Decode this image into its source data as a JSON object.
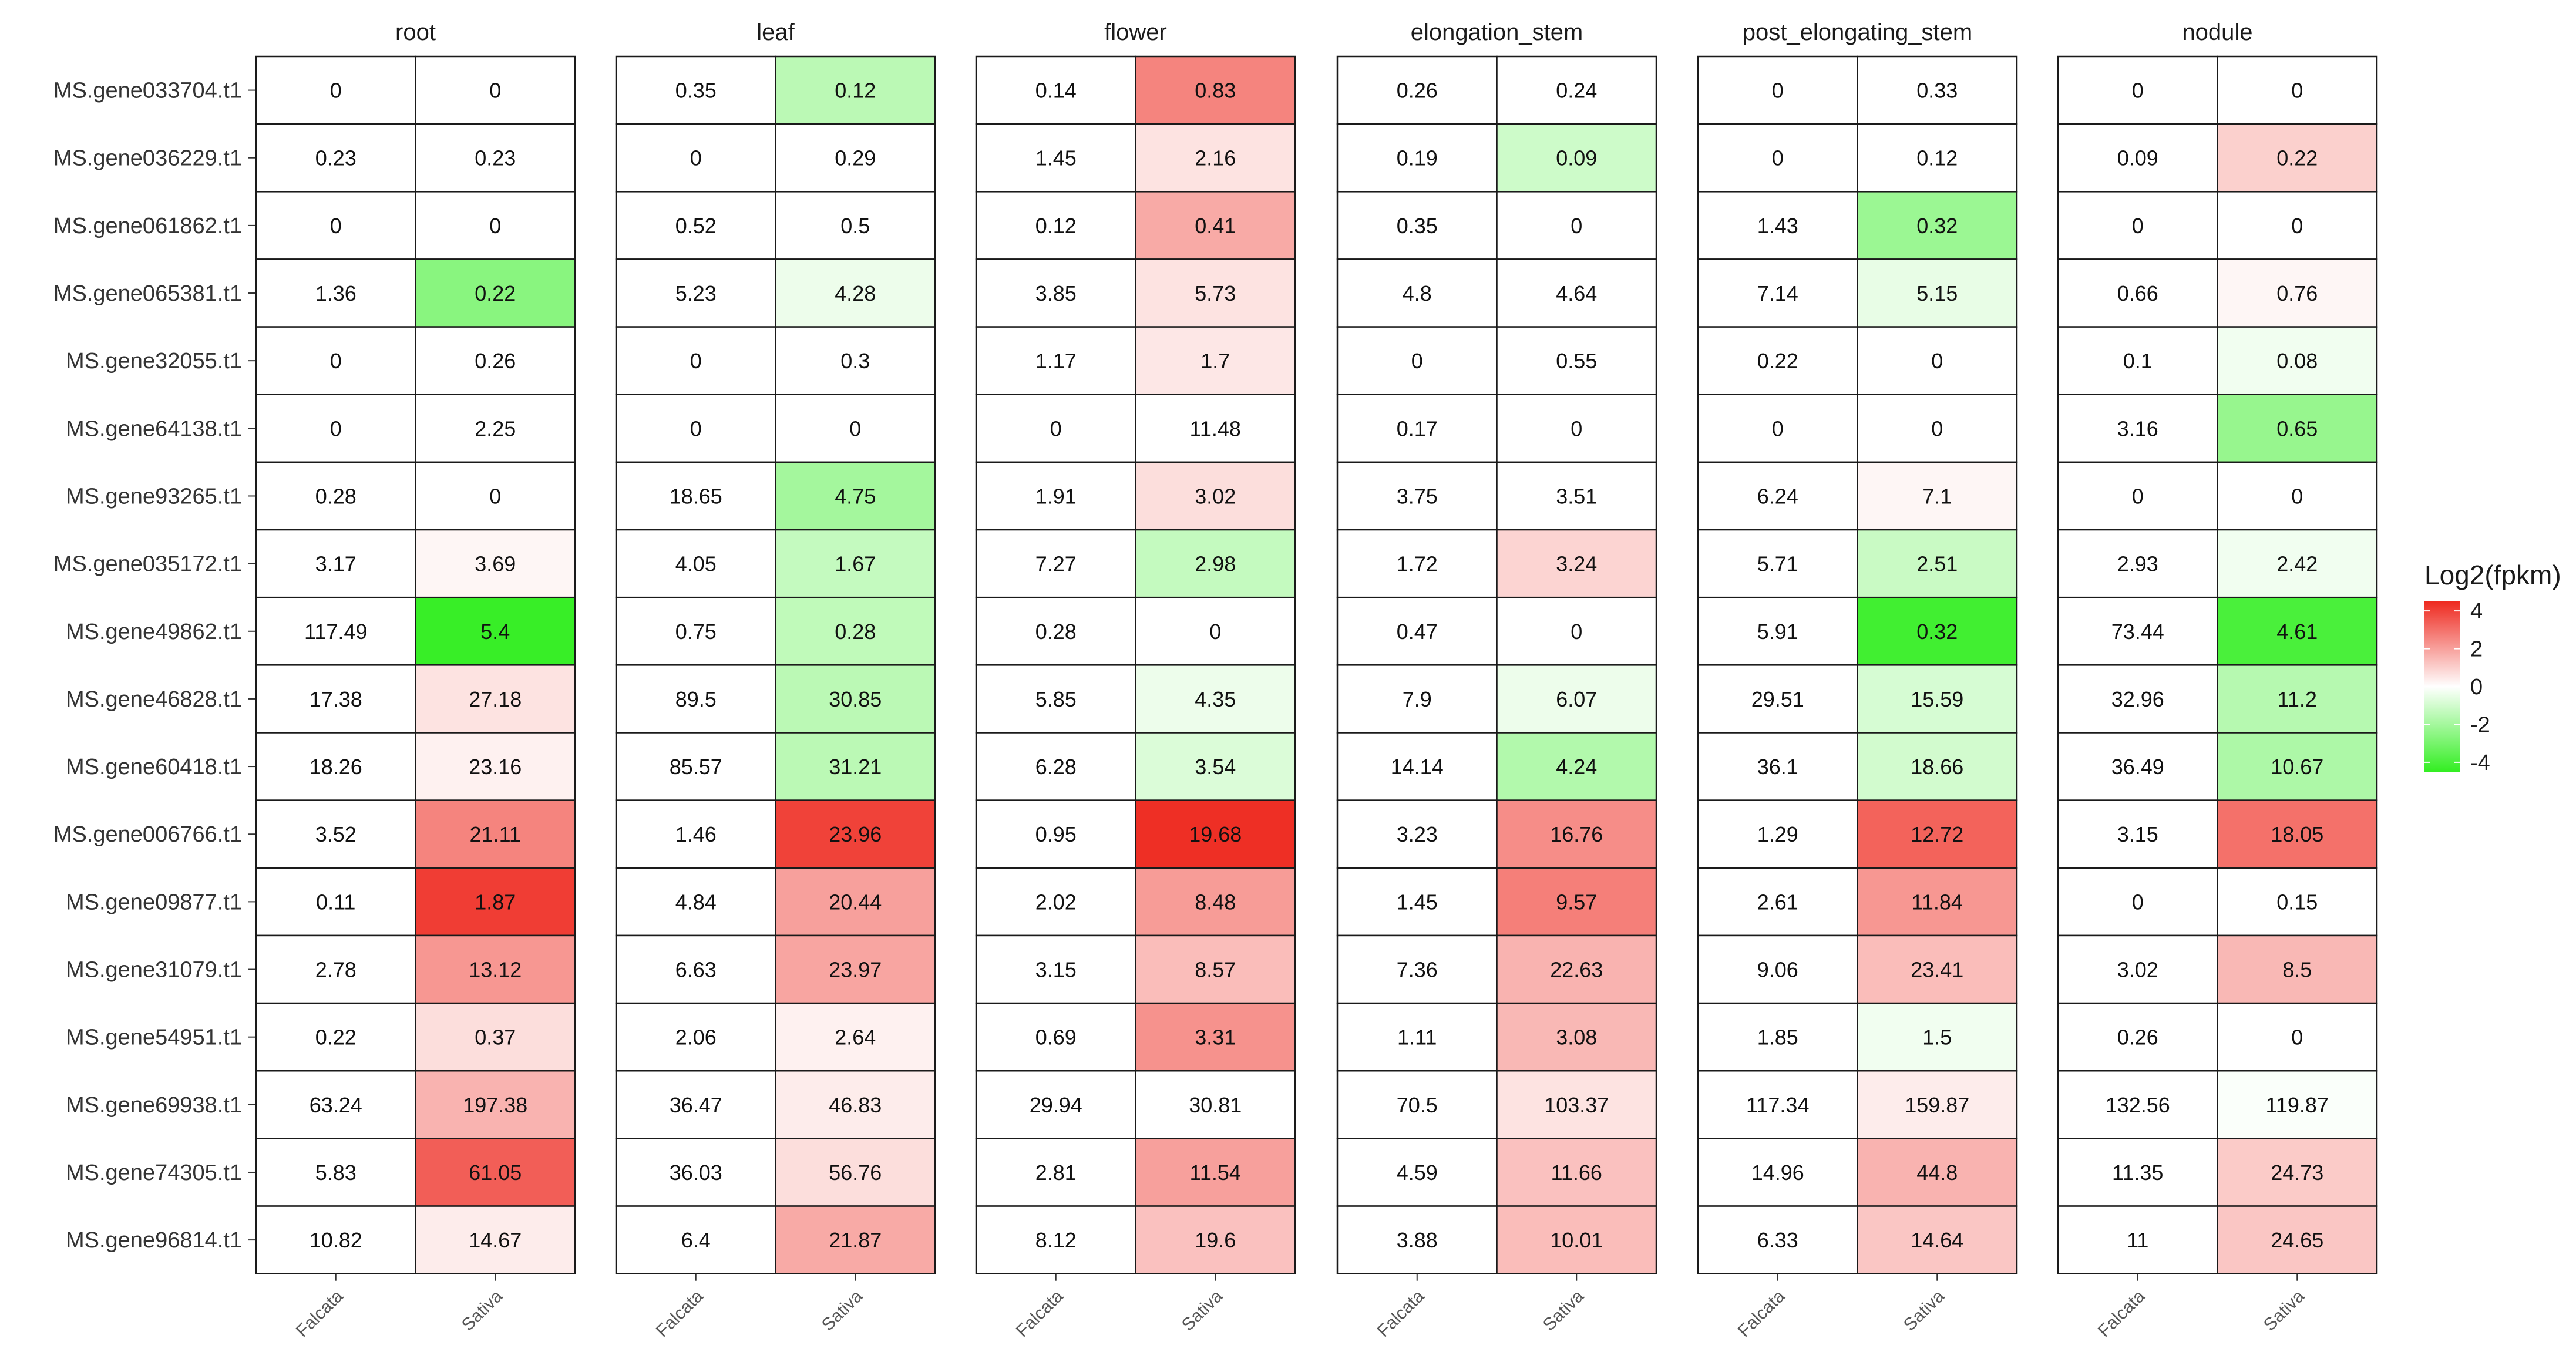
{
  "chart_data": {
    "type": "heatmap",
    "panels": [
      "root",
      "leaf",
      "flower",
      "elongation_stem",
      "post_elongating_stem",
      "nodule"
    ],
    "columns": [
      "Falcata",
      "Sativa"
    ],
    "genes": [
      "MS.gene033704.t1",
      "MS.gene036229.t1",
      "MS.gene061862.t1",
      "MS.gene065381.t1",
      "MS.gene32055.t1",
      "MS.gene64138.t1",
      "MS.gene93265.t1",
      "MS.gene035172.t1",
      "MS.gene49862.t1",
      "MS.gene46828.t1",
      "MS.gene60418.t1",
      "MS.gene006766.t1",
      "MS.gene09877.t1",
      "MS.gene31079.t1",
      "MS.gene54951.t1",
      "MS.gene69938.t1",
      "MS.gene74305.t1",
      "MS.gene96814.t1"
    ],
    "values": {
      "root": [
        [
          "0",
          "0"
        ],
        [
          "0.23",
          "0.23"
        ],
        [
          "0",
          "0"
        ],
        [
          "1.36",
          "0.22"
        ],
        [
          "0",
          "0.26"
        ],
        [
          "0",
          "2.25"
        ],
        [
          "0.28",
          "0"
        ],
        [
          "3.17",
          "3.69"
        ],
        [
          "117.49",
          "5.4"
        ],
        [
          "17.38",
          "27.18"
        ],
        [
          "18.26",
          "23.16"
        ],
        [
          "3.52",
          "21.11"
        ],
        [
          "0.11",
          "1.87"
        ],
        [
          "2.78",
          "13.12"
        ],
        [
          "0.22",
          "0.37"
        ],
        [
          "63.24",
          "197.38"
        ],
        [
          "5.83",
          "61.05"
        ],
        [
          "10.82",
          "14.67"
        ]
      ],
      "leaf": [
        [
          "0.35",
          "0.12"
        ],
        [
          "0",
          "0.29"
        ],
        [
          "0.52",
          "0.5"
        ],
        [
          "5.23",
          "4.28"
        ],
        [
          "0",
          "0.3"
        ],
        [
          "0",
          "0"
        ],
        [
          "18.65",
          "4.75"
        ],
        [
          "4.05",
          "1.67"
        ],
        [
          "0.75",
          "0.28"
        ],
        [
          "89.5",
          "30.85"
        ],
        [
          "85.57",
          "31.21"
        ],
        [
          "1.46",
          "23.96"
        ],
        [
          "4.84",
          "20.44"
        ],
        [
          "6.63",
          "23.97"
        ],
        [
          "2.06",
          "2.64"
        ],
        [
          "36.47",
          "46.83"
        ],
        [
          "36.03",
          "56.76"
        ],
        [
          "6.4",
          "21.87"
        ]
      ],
      "flower": [
        [
          "0.14",
          "0.83"
        ],
        [
          "1.45",
          "2.16"
        ],
        [
          "0.12",
          "0.41"
        ],
        [
          "3.85",
          "5.73"
        ],
        [
          "1.17",
          "1.7"
        ],
        [
          "0",
          "11.48"
        ],
        [
          "1.91",
          "3.02"
        ],
        [
          "7.27",
          "2.98"
        ],
        [
          "0.28",
          "0"
        ],
        [
          "5.85",
          "4.35"
        ],
        [
          "6.28",
          "3.54"
        ],
        [
          "0.95",
          "19.68"
        ],
        [
          "2.02",
          "8.48"
        ],
        [
          "3.15",
          "8.57"
        ],
        [
          "0.69",
          "3.31"
        ],
        [
          "29.94",
          "30.81"
        ],
        [
          "2.81",
          "11.54"
        ],
        [
          "8.12",
          "19.6"
        ]
      ],
      "elongation_stem": [
        [
          "0.26",
          "0.24"
        ],
        [
          "0.19",
          "0.09"
        ],
        [
          "0.35",
          "0"
        ],
        [
          "4.8",
          "4.64"
        ],
        [
          "0",
          "0.55"
        ],
        [
          "0.17",
          "0"
        ],
        [
          "3.75",
          "3.51"
        ],
        [
          "1.72",
          "3.24"
        ],
        [
          "0.47",
          "0"
        ],
        [
          "7.9",
          "6.07"
        ],
        [
          "14.14",
          "4.24"
        ],
        [
          "3.23",
          "16.76"
        ],
        [
          "1.45",
          "9.57"
        ],
        [
          "7.36",
          "22.63"
        ],
        [
          "1.11",
          "3.08"
        ],
        [
          "70.5",
          "103.37"
        ],
        [
          "4.59",
          "11.66"
        ],
        [
          "3.88",
          "10.01"
        ]
      ],
      "post_elongating_stem": [
        [
          "0",
          "0.33"
        ],
        [
          "0",
          "0.12"
        ],
        [
          "1.43",
          "0.32"
        ],
        [
          "7.14",
          "5.15"
        ],
        [
          "0.22",
          "0"
        ],
        [
          "0",
          "0"
        ],
        [
          "6.24",
          "7.1"
        ],
        [
          "5.71",
          "2.51"
        ],
        [
          "5.91",
          "0.32"
        ],
        [
          "29.51",
          "15.59"
        ],
        [
          "36.1",
          "18.66"
        ],
        [
          "1.29",
          "12.72"
        ],
        [
          "2.61",
          "11.84"
        ],
        [
          "9.06",
          "23.41"
        ],
        [
          "1.85",
          "1.5"
        ],
        [
          "117.34",
          "159.87"
        ],
        [
          "14.96",
          "44.8"
        ],
        [
          "6.33",
          "14.64"
        ]
      ],
      "nodule": [
        [
          "0",
          "0"
        ],
        [
          "0.09",
          "0.22"
        ],
        [
          "0",
          "0"
        ],
        [
          "0.66",
          "0.76"
        ],
        [
          "0.1",
          "0.08"
        ],
        [
          "3.16",
          "0.65"
        ],
        [
          "0",
          "0"
        ],
        [
          "2.93",
          "2.42"
        ],
        [
          "73.44",
          "4.61"
        ],
        [
          "32.96",
          "11.2"
        ],
        [
          "36.49",
          "10.67"
        ],
        [
          "3.15",
          "18.05"
        ],
        [
          "0",
          "0.15"
        ],
        [
          "3.02",
          "8.5"
        ],
        [
          "0.26",
          "0"
        ],
        [
          "132.56",
          "119.87"
        ],
        [
          "11.35",
          "24.73"
        ],
        [
          "11",
          "24.65"
        ]
      ]
    },
    "sativa_color_log2": {
      "root": [
        0,
        0,
        0,
        -2.6,
        0,
        0,
        0,
        0.2,
        -4.4,
        0.6,
        0.3,
        2.6,
        4.1,
        2.2,
        0.7,
        1.6,
        3.4,
        0.4
      ],
      "leaf": [
        -1.5,
        0,
        0,
        -0.4,
        0,
        0,
        -2.0,
        -1.3,
        -1.4,
        -1.5,
        -1.5,
        4.0,
        2.0,
        1.9,
        0.3,
        0.4,
        0.7,
        1.8
      ],
      "flower": [
        2.6,
        0.6,
        1.8,
        0.6,
        0.5,
        0,
        0.7,
        -1.3,
        0,
        -0.4,
        -0.8,
        4.4,
        2.1,
        1.4,
        2.3,
        0,
        2.0,
        1.3
      ],
      "elongation_stem": [
        0,
        -1.1,
        0,
        0,
        0,
        0,
        0,
        0.9,
        0,
        -0.4,
        -1.7,
        2.4,
        2.7,
        1.6,
        1.5,
        0.6,
        1.3,
        1.4
      ],
      "post_elongating_stem": [
        0,
        0,
        -2.2,
        -0.5,
        0,
        0,
        0.2,
        -1.2,
        -4.2,
        -0.9,
        -1.0,
        3.3,
        2.2,
        1.4,
        -0.3,
        0.4,
        1.6,
        1.2
      ],
      "nodule": [
        0,
        1.0,
        0,
        0.2,
        -0.3,
        -2.3,
        0,
        -0.3,
        -4.0,
        -1.6,
        -1.8,
        3.0,
        0,
        1.5,
        0,
        -0.1,
        1.1,
        1.2
      ]
    },
    "legend": {
      "title": "Log2(fpkm)",
      "ticks": [
        "4",
        "2",
        "0",
        "-2",
        "-4"
      ],
      "range": [
        -4.5,
        4.5
      ],
      "colors": {
        "high": "#ee2a20",
        "mid": "#ffffff",
        "low": "#33ee22"
      }
    }
  }
}
